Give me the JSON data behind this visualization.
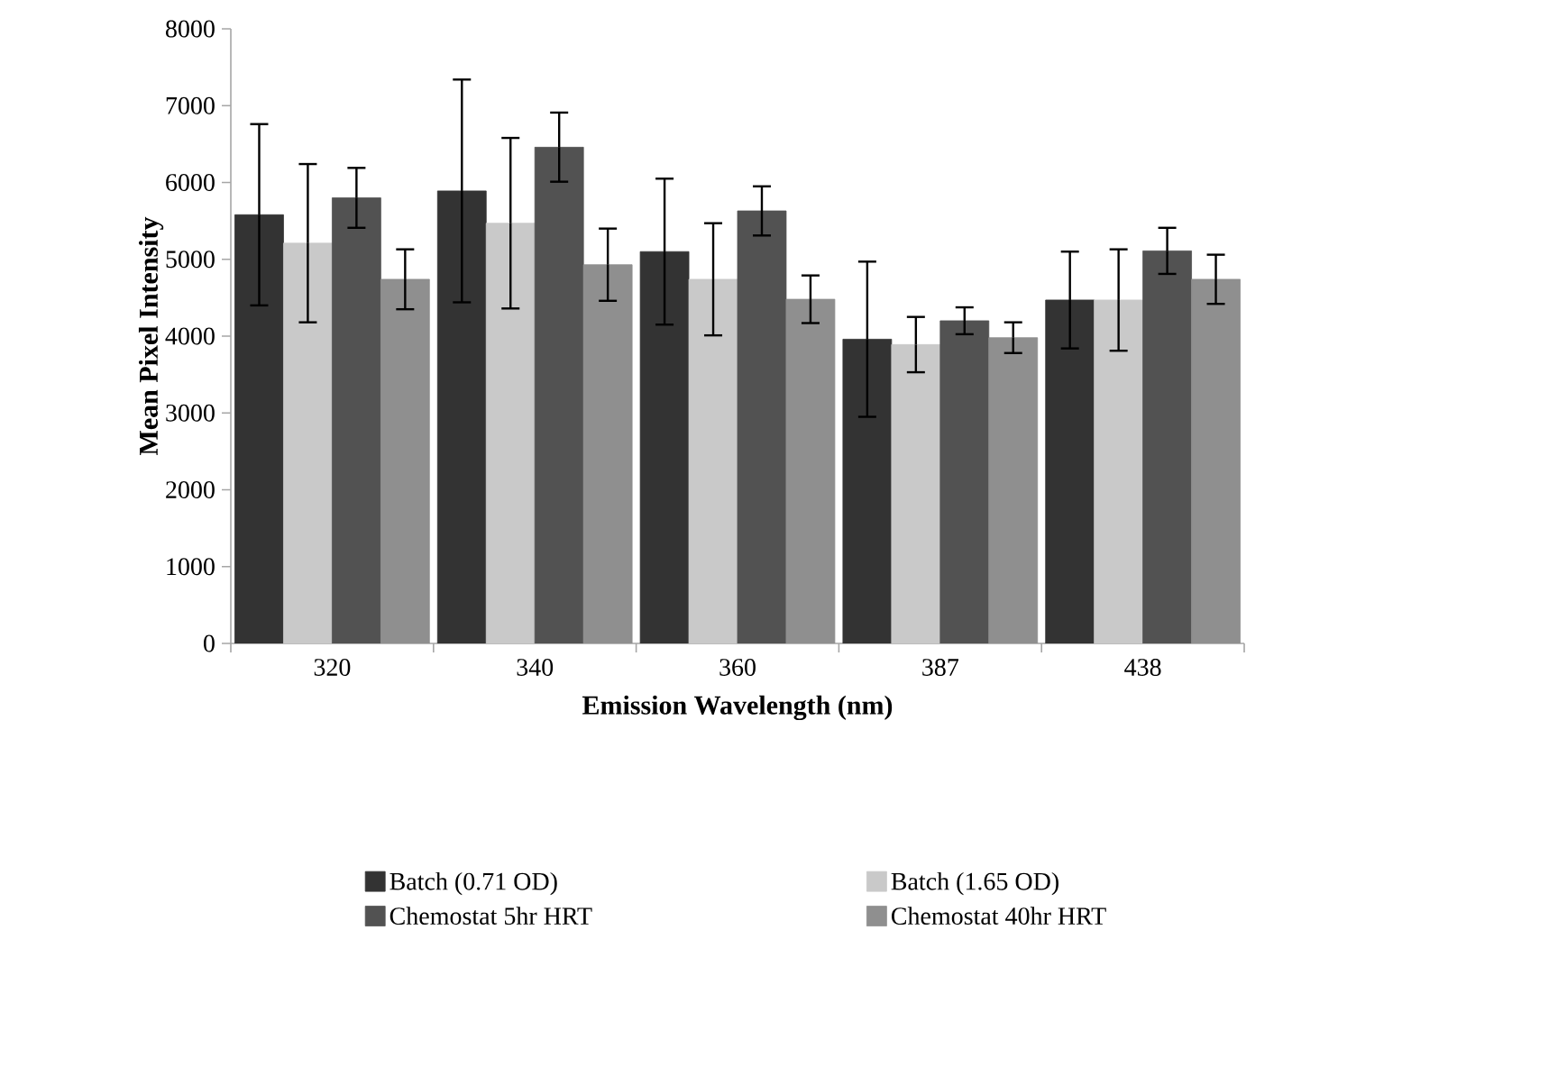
{
  "chart_data": {
    "type": "bar",
    "xlabel": "Emission Wavelength (nm)",
    "ylabel": "Mean Pixel Intensity",
    "categories": [
      "320",
      "340",
      "360",
      "387",
      "438"
    ],
    "series": [
      {
        "name": "Batch (0.71 OD)",
        "color": "#333333",
        "values": [
          5580,
          5890,
          5100,
          3960,
          4470
        ],
        "errors": [
          1180,
          1450,
          950,
          1010,
          630
        ]
      },
      {
        "name": "Batch (1.65 OD)",
        "color": "#c9c9c9",
        "values": [
          5210,
          5470,
          4740,
          3890,
          4470
        ],
        "errors": [
          1030,
          1110,
          730,
          360,
          660
        ]
      },
      {
        "name": "Chemostat 5hr HRT",
        "color": "#525252",
        "values": [
          5800,
          6460,
          5630,
          4200,
          5110
        ],
        "errors": [
          390,
          450,
          320,
          175,
          300
        ]
      },
      {
        "name": "Chemostat 40hr HRT",
        "color": "#8f8f8f",
        "values": [
          4740,
          4930,
          4480,
          3980,
          4740
        ],
        "errors": [
          390,
          470,
          310,
          200,
          320
        ]
      }
    ],
    "ylim": [
      0,
      8000
    ],
    "yticks": [
      0,
      1000,
      2000,
      3000,
      4000,
      5000,
      6000,
      7000,
      8000
    ],
    "grid": false,
    "legend": "bottom"
  }
}
